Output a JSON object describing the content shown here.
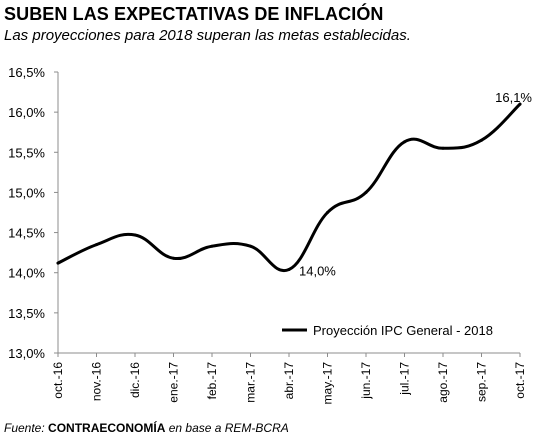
{
  "header": {
    "title": "SUBEN LAS EXPECTATIVAS DE INFLACIÓN",
    "subtitle": "Las proyecciones para 2018 superan las metas establecidas."
  },
  "footer": {
    "source_prefix": "Fuente:",
    "source_brand": "CONTRAECONOMÍA",
    "source_suffix": "en base a REM-BCRA"
  },
  "chart_data": {
    "type": "line",
    "title": "SUBEN LAS EXPECTATIVAS DE INFLACIÓN",
    "subtitle": "Las proyecciones para 2018 superan las metas establecidas.",
    "xlabel": "",
    "ylabel": "",
    "categories": [
      "oct.-16",
      "nov.-16",
      "dic.-16",
      "ene.-17",
      "feb.-17",
      "mar.-17",
      "abr.-17",
      "may.-17",
      "jun.-17",
      "jul.-17",
      "ago.-17",
      "sep.-17",
      "oct.-17"
    ],
    "y_ticks": [
      "13,0%",
      "13,5%",
      "14,0%",
      "14,5%",
      "15,0%",
      "15,5%",
      "16,0%",
      "16,5%"
    ],
    "ylim": [
      13.0,
      16.5
    ],
    "grid": false,
    "legend_position": "bottom-right",
    "series": [
      {
        "name": "Proyección IPC General - 2018",
        "color": "#000000",
        "values": [
          14.12,
          14.35,
          14.47,
          14.18,
          14.33,
          14.33,
          14.04,
          14.75,
          15.0,
          15.63,
          15.55,
          15.65,
          16.1
        ]
      }
    ],
    "annotations": [
      {
        "index": 6,
        "text": "14,0%"
      },
      {
        "index": 12,
        "text": "16,1%"
      }
    ]
  }
}
